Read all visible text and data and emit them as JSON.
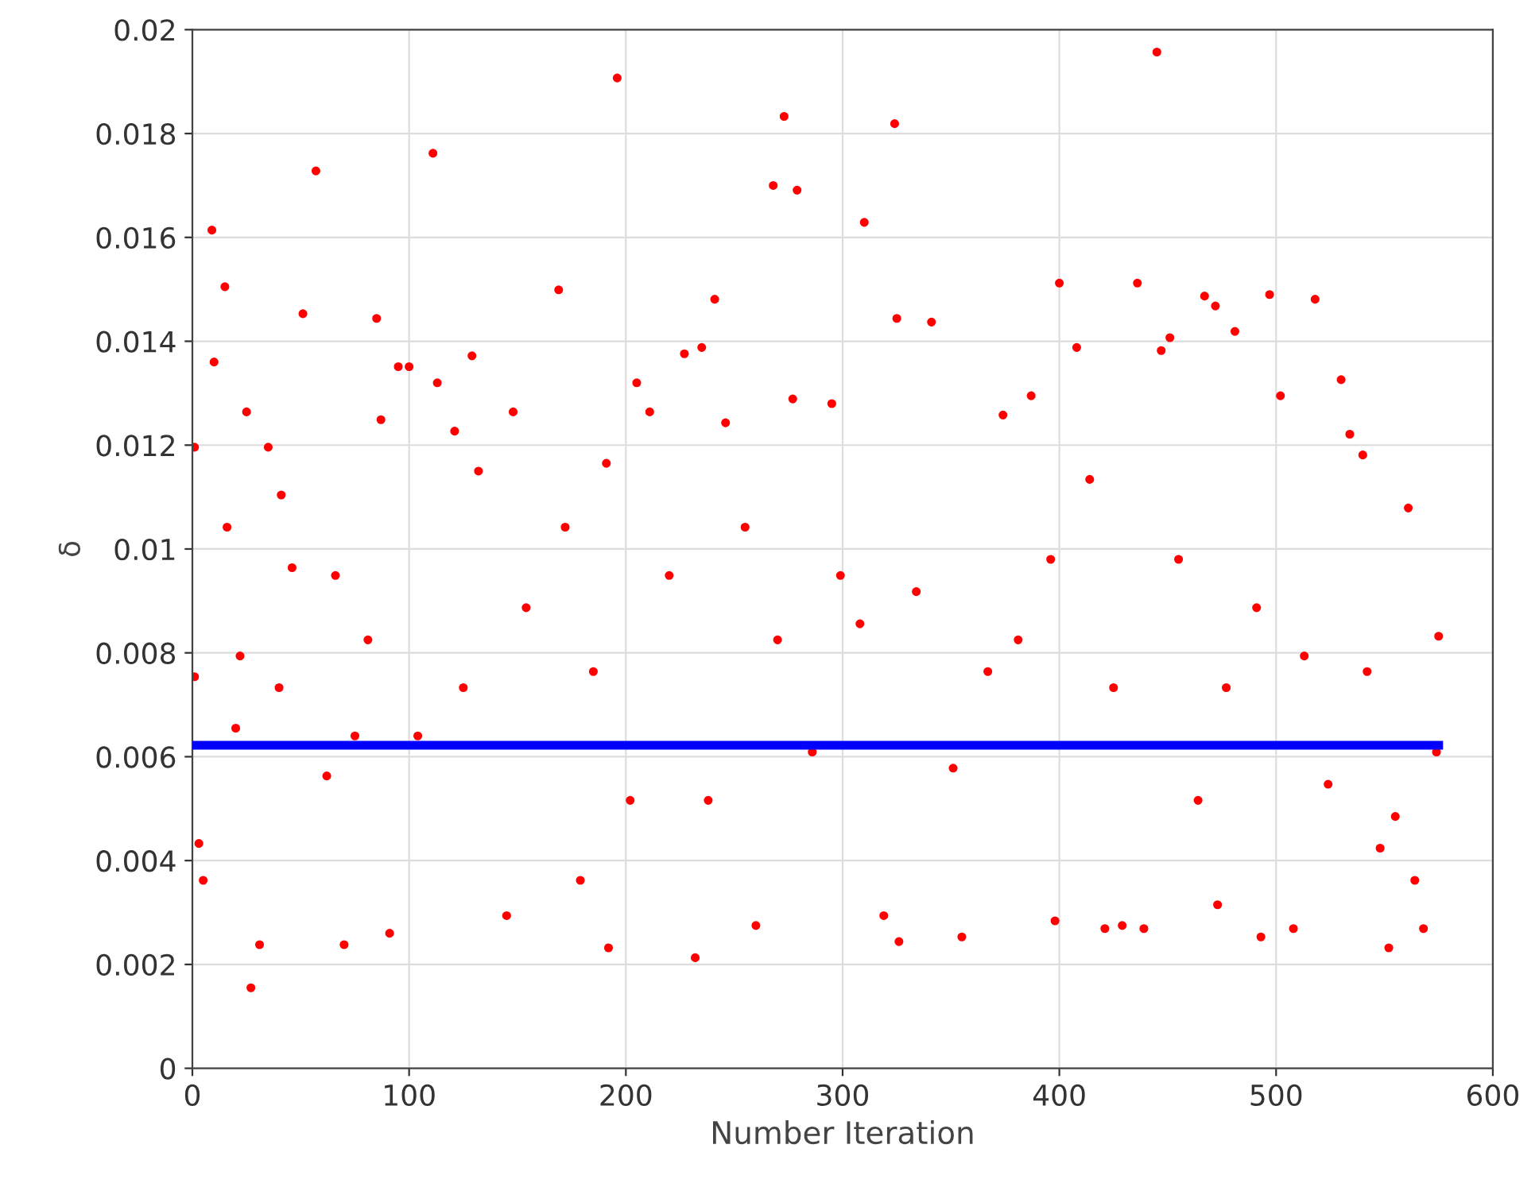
{
  "chart_data": {
    "type": "scatter",
    "xlabel": "Number Iteration",
    "ylabel": "δ",
    "xlim": [
      0,
      600
    ],
    "xticks": [
      0,
      100,
      200,
      300,
      400,
      500,
      600
    ],
    "ylim": [
      0,
      0.02
    ],
    "yticks": [
      0,
      0.002,
      0.004,
      0.006,
      0.008,
      0.01,
      0.012,
      0.014,
      0.016,
      0.018,
      0.02
    ],
    "grid": true,
    "series": [
      {
        "marker": "circle",
        "color": "#ff0000",
        "x": [
          1,
          1,
          3,
          5,
          9,
          10,
          15,
          16,
          20,
          25,
          27,
          31,
          35,
          41,
          46,
          51,
          57,
          62,
          70,
          75,
          85,
          87,
          91,
          95,
          100,
          111,
          113,
          121,
          129,
          132,
          145,
          148,
          169,
          179,
          191,
          192,
          196,
          205,
          211,
          227,
          232,
          235,
          241,
          246,
          260,
          268,
          273,
          279,
          277,
          295,
          299,
          310,
          319,
          326,
          324,
          325,
          341,
          355,
          367,
          374,
          387,
          398,
          400,
          408,
          421,
          429,
          436,
          439,
          445,
          447,
          451,
          467,
          472,
          473,
          481,
          493,
          497,
          502,
          508,
          518,
          530,
          534,
          540,
          548,
          552,
          561,
          564,
          568,
          575,
          574,
          22,
          40,
          66,
          81,
          104,
          125,
          154,
          172,
          185,
          202,
          220,
          238,
          255,
          270,
          286,
          308,
          334,
          351,
          381,
          396,
          414,
          425,
          455,
          464,
          477,
          491,
          513,
          524,
          542,
          555
        ],
        "values": [
          0.00754,
          0.01196,
          0.00433,
          0.00362,
          0.01614,
          0.0136,
          0.01505,
          0.01042,
          0.00655,
          0.01264,
          0.00155,
          0.00238,
          0.01196,
          0.01104,
          0.00964,
          0.01453,
          0.01728,
          0.00563,
          0.00238,
          0.0064,
          0.01444,
          0.01249,
          0.0026,
          0.01351,
          0.01351,
          0.01762,
          0.0132,
          0.01227,
          0.01372,
          0.0115,
          0.00294,
          0.01264,
          0.01499,
          0.00362,
          0.01165,
          0.00232,
          0.01907,
          0.0132,
          0.01264,
          0.01376,
          0.00213,
          0.01388,
          0.01481,
          0.01243,
          0.00275,
          0.017,
          0.01833,
          0.01691,
          0.01289,
          0.0128,
          0.00949,
          0.01629,
          0.00294,
          0.00244,
          0.01819,
          0.01444,
          0.01437,
          0.00253,
          0.00764,
          0.01258,
          0.01295,
          0.00284,
          0.01512,
          0.01388,
          0.00269,
          0.00275,
          0.01512,
          0.00269,
          0.01957,
          0.01382,
          0.01407,
          0.01487,
          0.01468,
          0.00315,
          0.01419,
          0.00253,
          0.0149,
          0.01295,
          0.00269,
          0.01481,
          0.01326,
          0.01221,
          0.01181,
          0.00424,
          0.00232,
          0.01079,
          0.00362,
          0.00269,
          0.00832,
          0.00609,
          0.00794,
          0.00733,
          0.00949,
          0.00825,
          0.0064,
          0.00733,
          0.00887,
          0.01042,
          0.00764,
          0.00516,
          0.00949,
          0.00516,
          0.01042,
          0.00825,
          0.00609,
          0.00856,
          0.00918,
          0.00578,
          0.00825,
          0.0098,
          0.01134,
          0.00733,
          0.0098,
          0.00516,
          0.00733,
          0.00887,
          0.00794,
          0.00547,
          0.00764,
          0.00485
        ]
      },
      {
        "type": "line",
        "marker": "none",
        "color": "#0000ff",
        "x": [
          0,
          575
        ],
        "values": [
          0.00622,
          0.00622
        ]
      }
    ]
  }
}
